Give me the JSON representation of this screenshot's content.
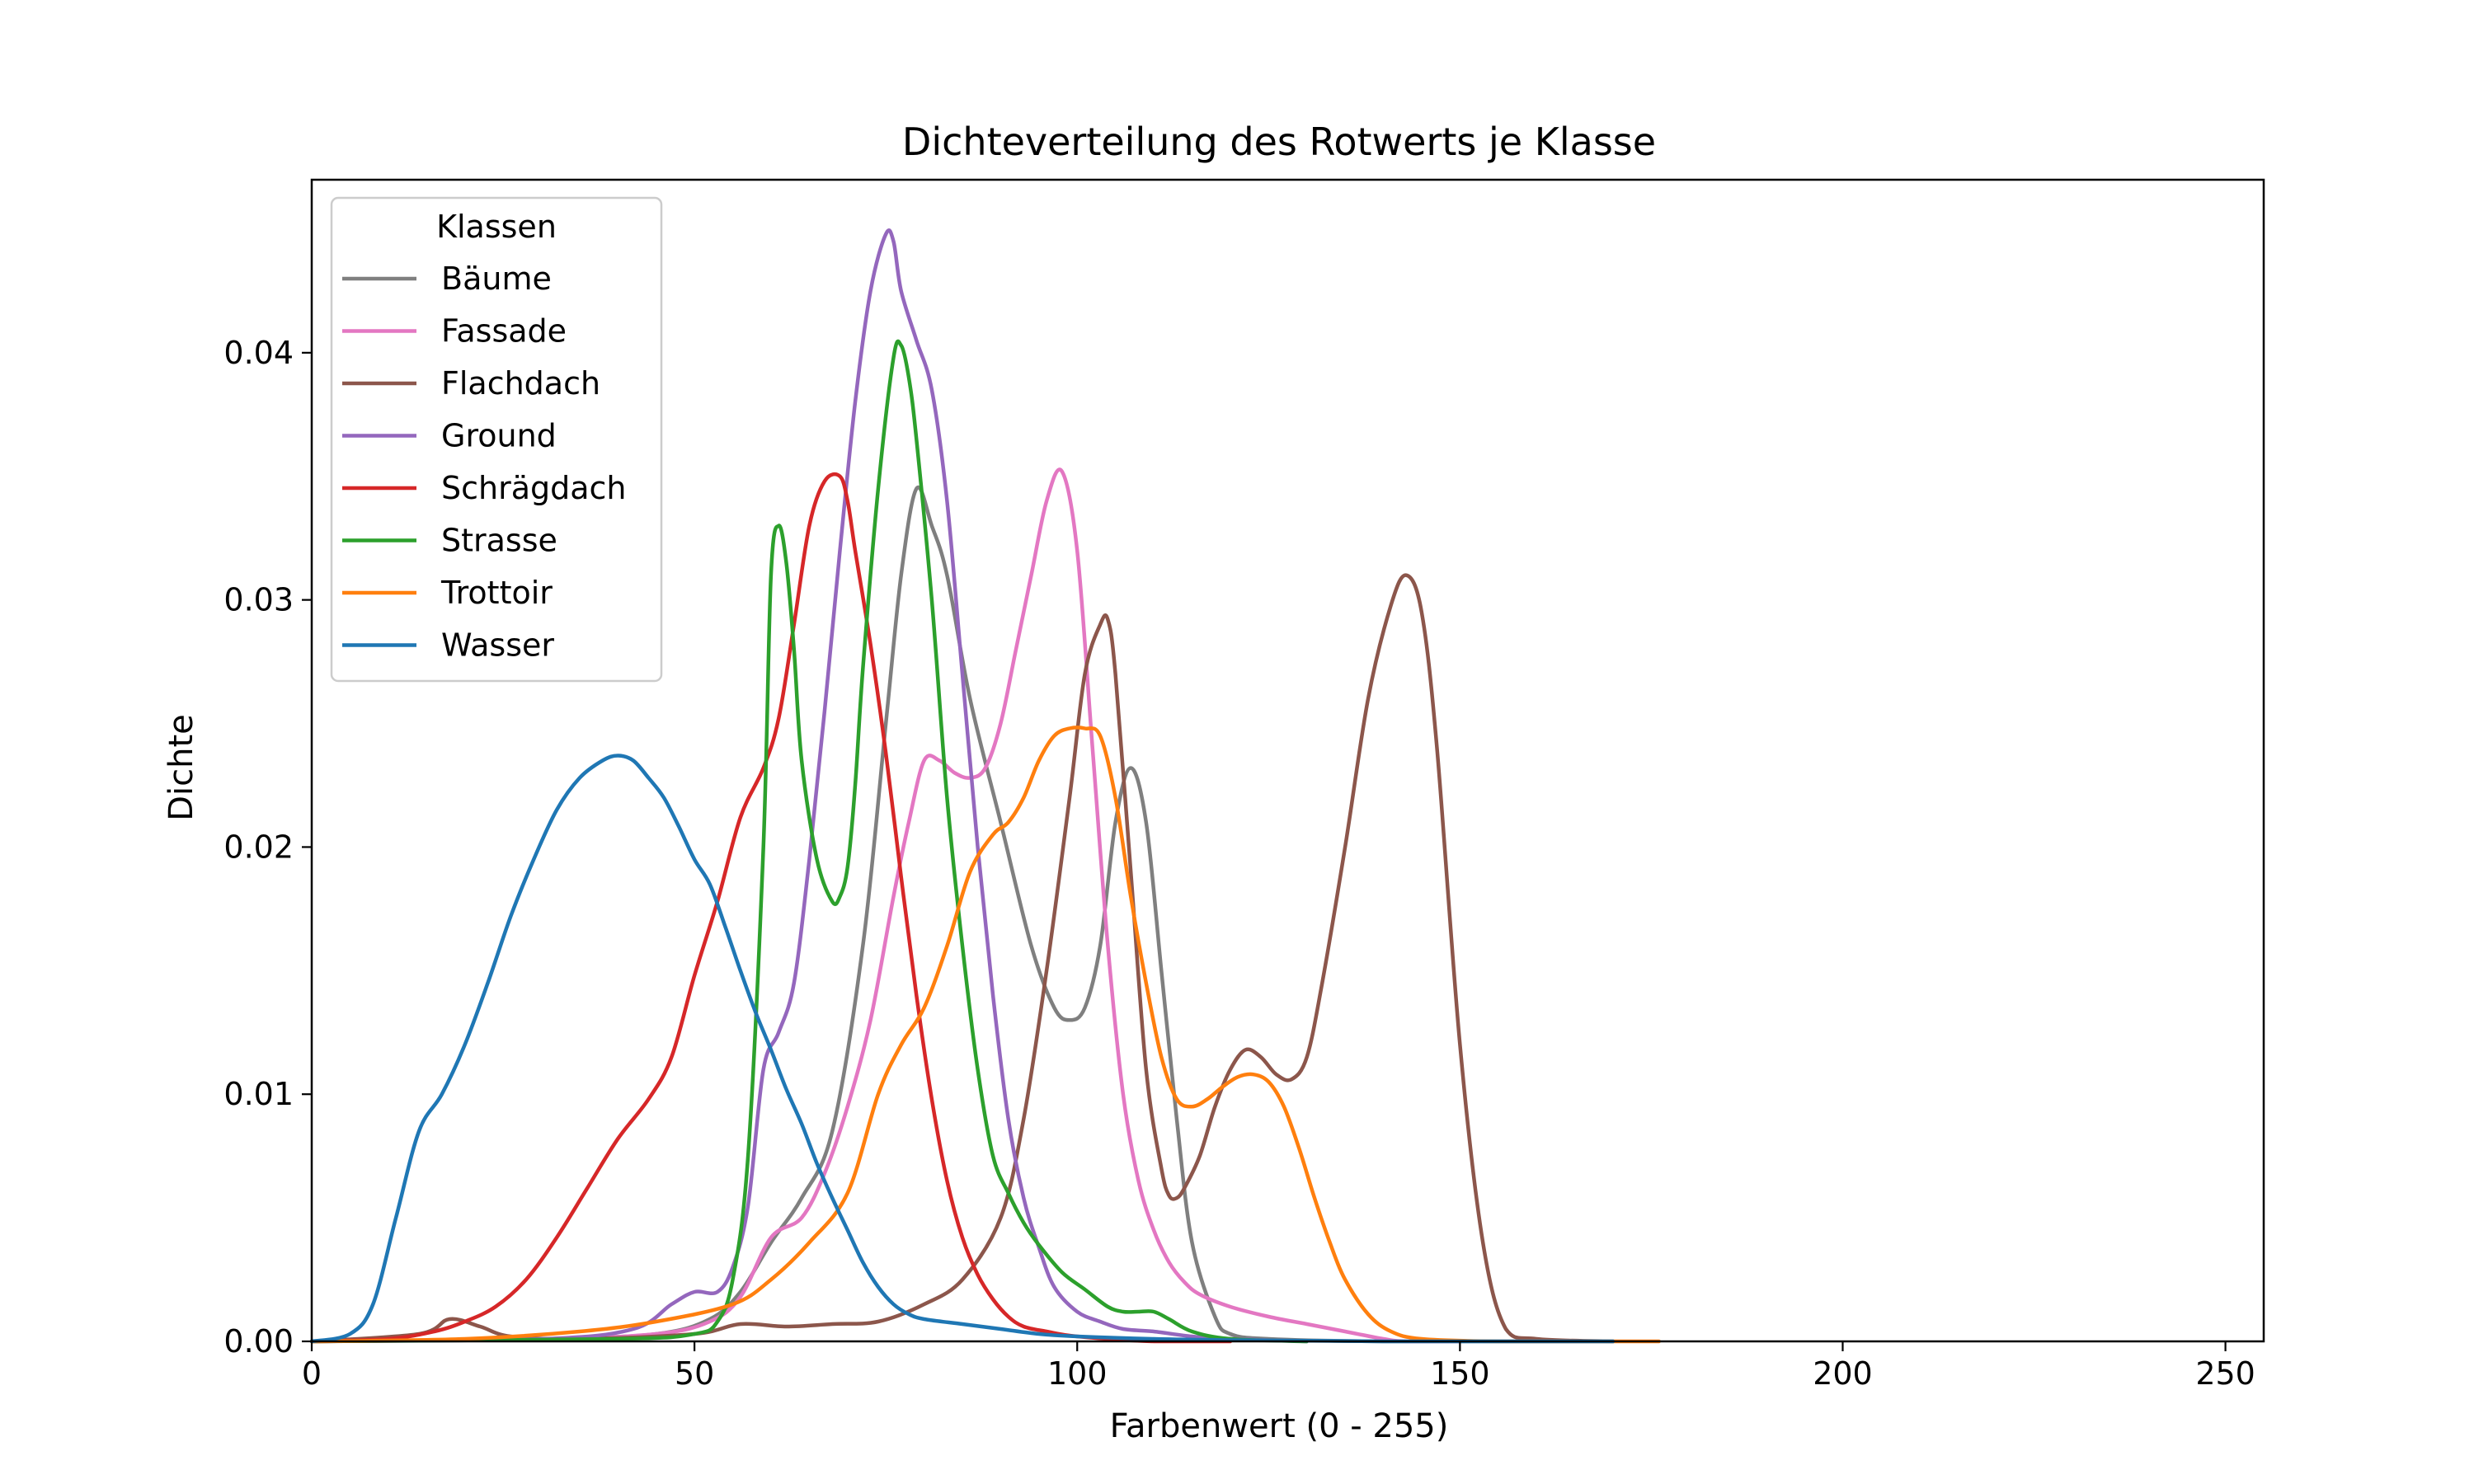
{
  "chart_data": {
    "type": "line",
    "title": "Dichteverteilung des Rotwerts je Klasse",
    "xlabel": "Farbenwert (0 - 255)",
    "ylabel": "Dichte",
    "xlim": [
      0,
      255
    ],
    "ylim": [
      0,
      0.047
    ],
    "x_ticks": [
      0,
      50,
      100,
      150,
      200,
      250
    ],
    "x_tick_labels": [
      "0",
      "50",
      "100",
      "150",
      "200",
      "250"
    ],
    "y_ticks": [
      0,
      0.01,
      0.02,
      0.03,
      0.04
    ],
    "y_tick_labels": [
      "0.00",
      "0.01",
      "0.02",
      "0.03",
      "0.04"
    ],
    "grid": false,
    "legend": {
      "title": "Klassen",
      "placement": "top-left",
      "labels": [
        "Bäume",
        "Fassade",
        "Flachdach",
        "Ground",
        "Schrägdach",
        "Strasse",
        "Trottoir",
        "Wasser"
      ]
    },
    "series": [
      {
        "name": "Bäume",
        "color": "#7f7f7f",
        "x": [
          0,
          30,
          45,
          52,
          56,
          60,
          64,
          68,
          72,
          75,
          77,
          79,
          81,
          83,
          86,
          90,
          94,
          97,
          99,
          101,
          103,
          105,
          107,
          109,
          111,
          113,
          115,
          118,
          120,
          125,
          140,
          170
        ],
        "y": [
          0,
          0.0001,
          0.0003,
          0.0009,
          0.002,
          0.004,
          0.0058,
          0.0085,
          0.016,
          0.025,
          0.031,
          0.0345,
          0.033,
          0.031,
          0.026,
          0.021,
          0.016,
          0.0135,
          0.013,
          0.0135,
          0.016,
          0.021,
          0.0232,
          0.021,
          0.015,
          0.009,
          0.004,
          0.001,
          0.0003,
          0.0001,
          0,
          0
        ]
      },
      {
        "name": "Fassade",
        "color": "#e377c2",
        "x": [
          0,
          30,
          45,
          52,
          56,
          60,
          64,
          67,
          70,
          73,
          76,
          78,
          80,
          82,
          84,
          86,
          88,
          90,
          92,
          94,
          96,
          98,
          100,
          102,
          104,
          106,
          108,
          110,
          112,
          114,
          116,
          120,
          125,
          130,
          135,
          140,
          143,
          150
        ],
        "y": [
          0,
          0.0001,
          0.0003,
          0.0008,
          0.0018,
          0.0042,
          0.005,
          0.0068,
          0.0095,
          0.013,
          0.018,
          0.021,
          0.0235,
          0.0235,
          0.023,
          0.0228,
          0.0232,
          0.025,
          0.028,
          0.031,
          0.034,
          0.0352,
          0.032,
          0.024,
          0.016,
          0.01,
          0.0065,
          0.0045,
          0.0032,
          0.0024,
          0.0019,
          0.0014,
          0.001,
          0.0007,
          0.0004,
          0.0001,
          0,
          0
        ]
      },
      {
        "name": "Flachdach",
        "color": "#8c564b",
        "x": [
          0,
          14,
          18,
          22,
          26,
          35,
          50,
          56,
          62,
          68,
          74,
          80,
          85,
          90,
          93,
          96,
          99,
          101,
          103,
          104,
          105,
          107,
          109,
          111,
          112,
          113,
          114,
          116,
          118,
          120,
          122,
          124,
          126,
          128,
          130,
          132,
          135,
          138,
          141,
          143,
          145,
          147,
          150,
          153,
          156,
          160,
          170
        ],
        "y": [
          0,
          0.0003,
          0.0009,
          0.0006,
          0.0002,
          0.0001,
          0.0003,
          0.0007,
          0.0006,
          0.0007,
          0.0008,
          0.0015,
          0.0025,
          0.005,
          0.009,
          0.015,
          0.022,
          0.027,
          0.029,
          0.0292,
          0.027,
          0.019,
          0.011,
          0.007,
          0.0059,
          0.0058,
          0.0062,
          0.0075,
          0.0095,
          0.011,
          0.0118,
          0.0115,
          0.0108,
          0.0106,
          0.0115,
          0.0145,
          0.02,
          0.026,
          0.0298,
          0.031,
          0.0295,
          0.024,
          0.012,
          0.004,
          0.0005,
          0.0001,
          0
        ]
      },
      {
        "name": "Ground",
        "color": "#9467bd",
        "x": [
          0,
          30,
          42,
          47,
          50,
          53,
          55,
          57,
          59,
          61,
          63,
          65,
          67,
          69,
          71,
          73,
          75,
          76,
          77,
          79,
          81,
          83,
          85,
          87,
          89,
          91,
          93,
          95,
          97,
          100,
          103,
          106,
          110,
          115,
          120,
          130
        ],
        "y": [
          0,
          0.0001,
          0.0005,
          0.0015,
          0.002,
          0.002,
          0.003,
          0.0055,
          0.011,
          0.0125,
          0.0145,
          0.0195,
          0.0255,
          0.032,
          0.038,
          0.0425,
          0.0448,
          0.0445,
          0.0425,
          0.0405,
          0.0385,
          0.034,
          0.027,
          0.02,
          0.014,
          0.009,
          0.0058,
          0.0038,
          0.0022,
          0.0012,
          0.0008,
          0.0005,
          0.0004,
          0.0002,
          0.0001,
          0
        ]
      },
      {
        "name": "Schrägdach",
        "color": "#d62728",
        "x": [
          0,
          10,
          16,
          20,
          24,
          28,
          32,
          36,
          40,
          44,
          47,
          50,
          53,
          56,
          59,
          61,
          63,
          65,
          67,
          69,
          70,
          71,
          73,
          75,
          77,
          79,
          81,
          83,
          85,
          87,
          89,
          91,
          93,
          96,
          100,
          110,
          120
        ],
        "y": [
          0,
          0.0001,
          0.0004,
          0.0008,
          0.0014,
          0.0025,
          0.0042,
          0.0062,
          0.0082,
          0.0098,
          0.0115,
          0.0148,
          0.0178,
          0.0212,
          0.0232,
          0.0252,
          0.029,
          0.033,
          0.0348,
          0.035,
          0.034,
          0.032,
          0.0282,
          0.0238,
          0.0188,
          0.014,
          0.0098,
          0.0065,
          0.0042,
          0.0027,
          0.0017,
          0.001,
          0.0006,
          0.0004,
          0.0002,
          0,
          0
        ]
      },
      {
        "name": "Strasse",
        "color": "#2ca02c",
        "x": [
          0,
          40,
          50,
          53,
          55,
          57,
          59,
          60,
          61,
          62,
          63,
          64,
          66,
          68,
          69,
          70,
          71,
          72,
          74,
          76,
          77,
          78,
          79,
          81,
          83,
          85,
          87,
          89,
          91,
          93,
          95,
          98,
          101,
          104,
          106,
          108,
          110,
          112,
          115,
          120,
          130
        ],
        "y": [
          0,
          0.0001,
          0.0003,
          0.0008,
          0.0025,
          0.0075,
          0.02,
          0.031,
          0.033,
          0.0315,
          0.028,
          0.0235,
          0.0195,
          0.0178,
          0.018,
          0.0192,
          0.0225,
          0.0272,
          0.0345,
          0.0398,
          0.0403,
          0.039,
          0.0365,
          0.03,
          0.022,
          0.016,
          0.011,
          0.0075,
          0.006,
          0.0048,
          0.0039,
          0.0028,
          0.0021,
          0.0014,
          0.0012,
          0.0012,
          0.0012,
          0.0009,
          0.0004,
          0.0001,
          0
        ]
      },
      {
        "name": "Trottoir",
        "color": "#ff7f0e",
        "x": [
          0,
          20,
          35,
          45,
          55,
          60,
          65,
          70,
          74,
          77,
          80,
          83,
          86,
          89,
          91,
          93,
          95,
          97,
          99,
          101,
          103,
          105,
          107,
          109,
          111,
          113,
          115,
          117,
          119,
          121,
          123,
          125,
          127,
          129,
          131,
          133,
          135,
          138,
          141,
          145,
          155,
          170,
          176
        ],
        "y": [
          0,
          0.0001,
          0.0004,
          0.0008,
          0.0015,
          0.0025,
          0.004,
          0.006,
          0.01,
          0.012,
          0.0135,
          0.016,
          0.019,
          0.0205,
          0.021,
          0.022,
          0.0235,
          0.0245,
          0.0248,
          0.0248,
          0.0245,
          0.022,
          0.018,
          0.0145,
          0.0115,
          0.0098,
          0.0095,
          0.0098,
          0.0103,
          0.0107,
          0.0108,
          0.0105,
          0.0095,
          0.0078,
          0.0058,
          0.004,
          0.0025,
          0.0011,
          0.0004,
          0.0001,
          0,
          0,
          0
        ]
      },
      {
        "name": "Wasser",
        "color": "#1f77b4",
        "x": [
          0,
          5,
          8,
          11,
          14,
          17,
          20,
          23,
          26,
          29,
          32,
          35,
          38,
          40,
          42,
          44,
          46,
          48,
          50,
          52,
          54,
          56,
          58,
          60,
          62,
          64,
          66,
          68,
          70,
          72,
          74,
          76,
          78,
          80,
          85,
          90,
          95,
          100,
          110,
          120,
          140,
          170
        ],
        "y": [
          0,
          0.0003,
          0.0015,
          0.005,
          0.0085,
          0.01,
          0.012,
          0.0145,
          0.0172,
          0.0195,
          0.0215,
          0.0228,
          0.0235,
          0.0237,
          0.0235,
          0.0228,
          0.022,
          0.0208,
          0.0195,
          0.0185,
          0.0168,
          0.015,
          0.0133,
          0.0118,
          0.0102,
          0.0088,
          0.0072,
          0.0058,
          0.0045,
          0.0032,
          0.0022,
          0.0015,
          0.0011,
          0.0009,
          0.0007,
          0.0005,
          0.0003,
          0.0002,
          0.0001,
          5e-05,
          0,
          0
        ]
      }
    ]
  }
}
